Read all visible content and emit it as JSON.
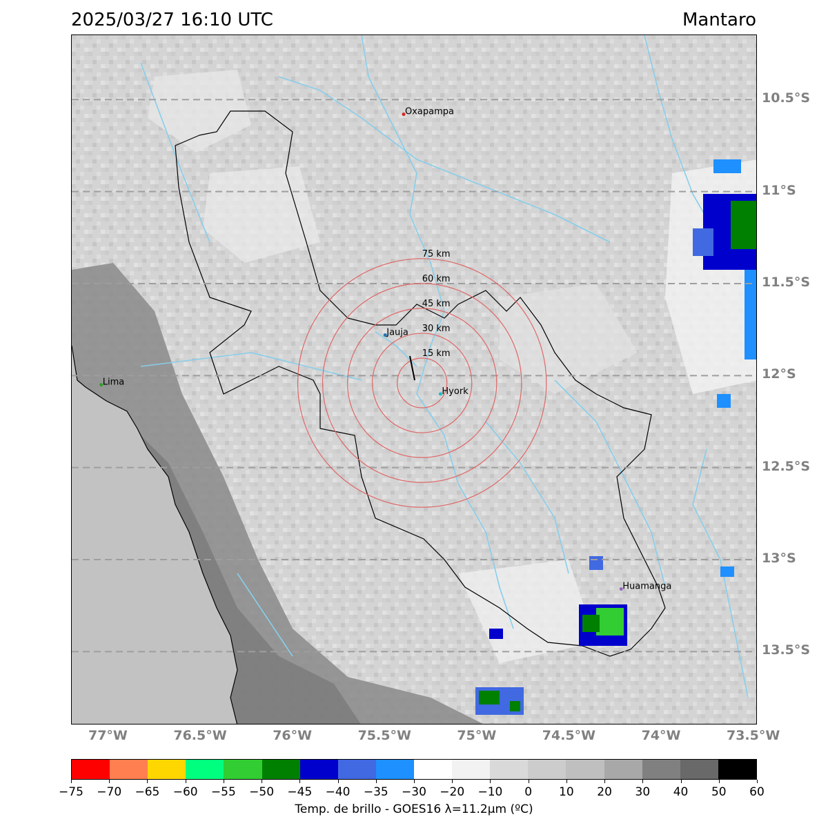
{
  "header": {
    "timestamp": "2025/03/27 16:10 UTC",
    "region": "Mantaro"
  },
  "lat_labels": [
    "10.5°S",
    "11°S",
    "11.5°S",
    "12°S",
    "12.5°S",
    "13°S",
    "13.5°S"
  ],
  "lon_labels": [
    "77°W",
    "76.5°W",
    "76°W",
    "75.5°W",
    "75°W",
    "74.5°W",
    "74°W",
    "73.5°W"
  ],
  "cities": [
    {
      "name": "Oxapampa",
      "lon": -75.4,
      "lat": -10.58,
      "color": "#d62728"
    },
    {
      "name": "Jauja",
      "lon": -75.5,
      "lat": -11.78,
      "color": "#1f77b4"
    },
    {
      "name": "Hyork",
      "lon": -75.2,
      "lat": -12.1,
      "color": "#17becf"
    },
    {
      "name": "Lima",
      "lon": -77.04,
      "lat": -12.05,
      "color": "#2ca02c"
    },
    {
      "name": "Huamanga",
      "lon": -74.22,
      "lat": -13.16,
      "color": "#9467bd"
    }
  ],
  "range_rings": {
    "center_lon": -75.3,
    "center_lat": -12.04,
    "labels": [
      "15 km",
      "30 km",
      "45 km",
      "60 km",
      "75 km"
    ],
    "radii_km": [
      15,
      30,
      45,
      60,
      75
    ],
    "color": "#e06666"
  },
  "colorbar": {
    "colors": [
      "#ff0000",
      "#ff7f50",
      "#ffd700",
      "#00ff7f",
      "#32cd32",
      "#008000",
      "#0000cd",
      "#4169e1",
      "#1e90ff",
      "#ffffff",
      "#f2f2f2",
      "#d9d9d9",
      "#cccccc",
      "#bfbfbf",
      "#a8a8a8",
      "#808080",
      "#696969",
      "#000000"
    ],
    "ticks": [
      "−75",
      "−70",
      "−65",
      "−60",
      "−55",
      "−50",
      "−45",
      "−40",
      "−35",
      "−30",
      "−20",
      "−10",
      "0",
      "10",
      "20",
      "30",
      "40",
      "50",
      "60"
    ],
    "label": "Temp. de brillo - GOES16 λ=11.2μm (ºC)"
  },
  "colors": {
    "grid": "#9e9e9e",
    "river": "#87ceeb",
    "coast": "#000000",
    "ocean": "#c2c2c2"
  }
}
